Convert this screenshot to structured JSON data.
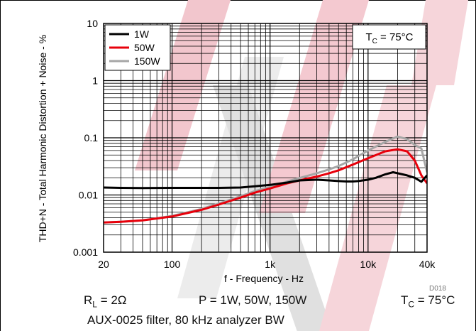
{
  "chart_data": {
    "type": "line",
    "title": "",
    "xlabel": "f - Frequency - Hz",
    "ylabel": "THD+N - Total Harmonic Distortion + Noise - %",
    "x_scale": "log",
    "y_scale": "log",
    "xlim": [
      20,
      40000
    ],
    "ylim": [
      0.001,
      10
    ],
    "x_ticks": [
      20,
      100,
      1000,
      10000,
      40000
    ],
    "x_tick_labels": [
      "20",
      "100",
      "1k",
      "10k",
      "40k"
    ],
    "y_ticks": [
      0.001,
      0.01,
      0.1,
      1,
      10
    ],
    "y_tick_labels": [
      "0.001",
      "0.01",
      "0.1",
      "1",
      "10"
    ],
    "grid": true,
    "legend_position": "top-left",
    "annotation": {
      "prefix": "T",
      "sub": "C",
      "suffix": " = 75°C"
    },
    "figure_id": "D018",
    "series": [
      {
        "name": "1W",
        "color": "#000000",
        "x": [
          20,
          30,
          50,
          100,
          200,
          300,
          500,
          700,
          1000,
          1500,
          2000,
          3000,
          4000,
          5000,
          6000,
          7000,
          8000,
          10000,
          12000,
          15000,
          18000,
          20000,
          25000,
          30000,
          35000,
          40000
        ],
        "y": [
          0.0135,
          0.0133,
          0.0132,
          0.0133,
          0.0133,
          0.0133,
          0.0135,
          0.0142,
          0.015,
          0.0165,
          0.018,
          0.0185,
          0.018,
          0.0175,
          0.0172,
          0.0172,
          0.0175,
          0.0185,
          0.02,
          0.023,
          0.025,
          0.024,
          0.022,
          0.02,
          0.017,
          0.022
        ]
      },
      {
        "name": "50W",
        "color": "#e8000b",
        "x": [
          20,
          30,
          50,
          100,
          200,
          300,
          500,
          700,
          1000,
          1500,
          2000,
          3000,
          4000,
          5000,
          7000,
          10000,
          15000,
          20000,
          25000,
          30000,
          35000,
          40000
        ],
        "y": [
          0.0033,
          0.0034,
          0.0036,
          0.0042,
          0.0055,
          0.0068,
          0.009,
          0.011,
          0.013,
          0.016,
          0.018,
          0.021,
          0.024,
          0.027,
          0.034,
          0.044,
          0.058,
          0.063,
          0.058,
          0.04,
          0.022,
          0.016
        ]
      },
      {
        "name": "150W",
        "color": "#a6a6a6",
        "x": [
          20,
          30,
          50,
          100,
          200,
          300,
          500,
          700,
          1000,
          1500,
          2000,
          3000,
          4000,
          5000,
          7000,
          10000,
          15000,
          20000,
          25000,
          30000,
          35000,
          40000
        ],
        "y": [
          0.0033,
          0.0034,
          0.0036,
          0.0043,
          0.0057,
          0.0071,
          0.0095,
          0.0117,
          0.0138,
          0.0172,
          0.0198,
          0.024,
          0.028,
          0.032,
          0.042,
          0.06,
          0.085,
          0.105,
          0.095,
          0.075,
          0.065,
          0.025
        ]
      }
    ]
  },
  "captions": {
    "rl_prefix": "R",
    "rl_sub": "L",
    "rl_suffix": " = 2Ω",
    "power": "P = 1W, 50W, 150W",
    "tc_prefix": "T",
    "tc_sub": "C",
    "tc_suffix": " = 75°C",
    "filter": "AUX-0025 filter, 80 kHz analyzer BW"
  }
}
